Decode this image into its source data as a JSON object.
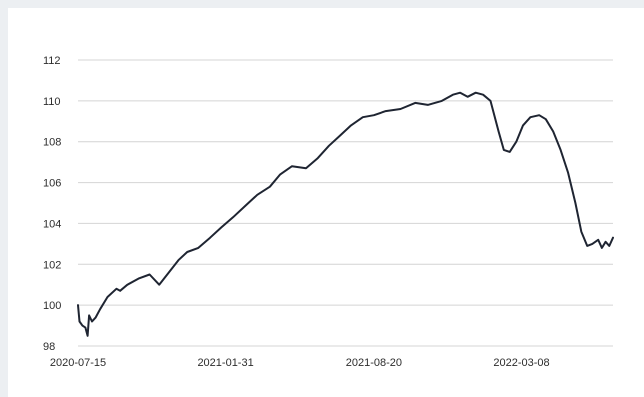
{
  "chart_data": {
    "type": "line",
    "title": "",
    "xlabel": "",
    "ylabel": "",
    "ylim": [
      98,
      112
    ],
    "yticks": [
      98,
      100,
      102,
      104,
      106,
      108,
      110,
      112
    ],
    "ytick_labels": [
      "98",
      "100",
      "102",
      "104",
      "106",
      "108",
      "110",
      "112"
    ],
    "xlim": [
      "2020-07-15",
      "2022-07-10"
    ],
    "xtick_labels": [
      "2020-07-15",
      "2021-01-31",
      "2021-08-20",
      "2022-03-08"
    ],
    "grid": "horizontal",
    "legend": "none",
    "line_color": "#1f2532",
    "series": [
      {
        "x": [
          "2020-07-15",
          "2020-07-17",
          "2020-07-21",
          "2020-07-25",
          "2020-07-28",
          "2020-07-30",
          "2020-08-03",
          "2020-08-08",
          "2020-08-14",
          "2020-08-24",
          "2020-09-05",
          "2020-09-10",
          "2020-09-20",
          "2020-10-05",
          "2020-10-20",
          "2020-11-02",
          "2020-11-15",
          "2020-11-28",
          "2020-12-10",
          "2020-12-25",
          "2021-01-10",
          "2021-01-25",
          "2021-02-10",
          "2021-02-28",
          "2021-03-15",
          "2021-04-01",
          "2021-04-15",
          "2021-05-01",
          "2021-05-20",
          "2021-06-05",
          "2021-06-20",
          "2021-07-05",
          "2021-07-20",
          "2021-08-05",
          "2021-08-20",
          "2021-09-05",
          "2021-09-25",
          "2021-10-15",
          "2021-11-01",
          "2021-11-20",
          "2021-12-05",
          "2021-12-15",
          "2021-12-25",
          "2022-01-05",
          "2022-01-15",
          "2022-01-25",
          "2022-02-05",
          "2022-02-12",
          "2022-02-20",
          "2022-03-01",
          "2022-03-10",
          "2022-03-20",
          "2022-04-01",
          "2022-04-10",
          "2022-04-20",
          "2022-04-30",
          "2022-05-10",
          "2022-05-20",
          "2022-05-28",
          "2022-06-05",
          "2022-06-12",
          "2022-06-20",
          "2022-06-25",
          "2022-06-30",
          "2022-07-05",
          "2022-07-10"
        ],
        "values": [
          100.0,
          99.2,
          99.0,
          98.9,
          98.5,
          99.5,
          99.2,
          99.4,
          99.8,
          100.4,
          100.8,
          100.7,
          101.0,
          101.3,
          101.5,
          101.0,
          101.6,
          102.2,
          102.6,
          102.8,
          103.3,
          103.8,
          104.3,
          104.9,
          105.4,
          105.8,
          106.4,
          106.8,
          106.7,
          107.2,
          107.8,
          108.3,
          108.8,
          109.2,
          109.3,
          109.5,
          109.6,
          109.9,
          109.8,
          110.0,
          110.3,
          110.4,
          110.2,
          110.4,
          110.3,
          110.0,
          108.5,
          107.6,
          107.5,
          108.0,
          108.8,
          109.2,
          109.3,
          109.1,
          108.5,
          107.6,
          106.5,
          105.0,
          103.6,
          102.9,
          103.0,
          103.2,
          102.8,
          103.1,
          102.9,
          103.3
        ]
      }
    ]
  }
}
